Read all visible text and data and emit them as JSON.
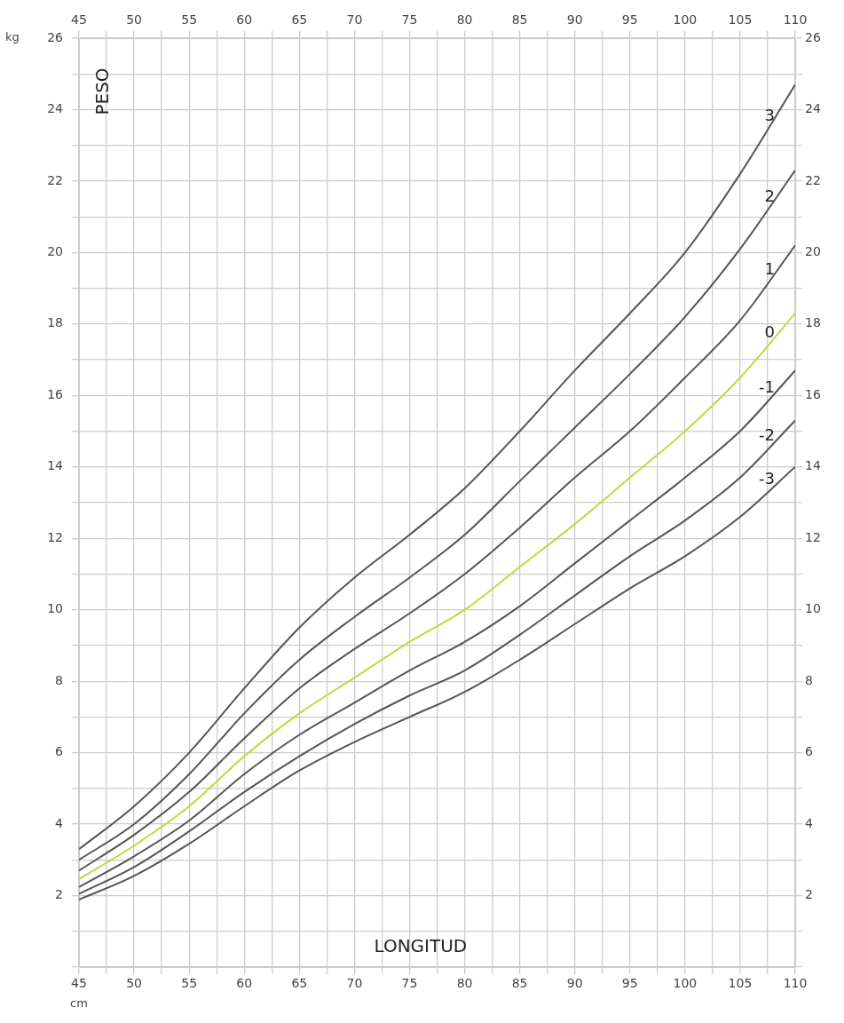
{
  "chart_data": {
    "type": "line",
    "xlabel": "LONGITUD",
    "ylabel": "PESO",
    "annotations": [
      "kg",
      "cm"
    ],
    "x": [
      45,
      50,
      55,
      60,
      65,
      70,
      75,
      80,
      85,
      90,
      95,
      100,
      105,
      110
    ],
    "series": [
      {
        "name": "3",
        "color": "#555555",
        "values": [
          3.3,
          4.5,
          6.0,
          7.8,
          9.5,
          10.9,
          12.1,
          13.4,
          15.0,
          16.7,
          18.3,
          20.0,
          22.2,
          24.7
        ]
      },
      {
        "name": "2",
        "color": "#555555",
        "values": [
          3.0,
          4.0,
          5.4,
          7.1,
          8.6,
          9.8,
          10.9,
          12.1,
          13.6,
          15.1,
          16.6,
          18.2,
          20.1,
          22.3
        ]
      },
      {
        "name": "1",
        "color": "#555555",
        "values": [
          2.7,
          3.7,
          4.9,
          6.4,
          7.8,
          8.9,
          9.9,
          11.0,
          12.3,
          13.7,
          15.0,
          16.5,
          18.1,
          20.2
        ]
      },
      {
        "name": "0",
        "color": "#c5d63f",
        "values": [
          2.46,
          3.4,
          4.5,
          5.9,
          7.1,
          8.1,
          9.1,
          10.0,
          11.2,
          12.4,
          13.7,
          15.0,
          16.5,
          18.3
        ]
      },
      {
        "name": "-1",
        "color": "#555555",
        "values": [
          2.24,
          3.1,
          4.1,
          5.4,
          6.5,
          7.4,
          8.3,
          9.1,
          10.1,
          11.3,
          12.5,
          13.7,
          15.0,
          16.7
        ]
      },
      {
        "name": "-2",
        "color": "#555555",
        "values": [
          2.05,
          2.8,
          3.8,
          4.9,
          5.9,
          6.8,
          7.6,
          8.3,
          9.3,
          10.4,
          11.5,
          12.5,
          13.7,
          15.3
        ]
      },
      {
        "name": "-3",
        "color": "#555555",
        "values": [
          1.89,
          2.55,
          3.45,
          4.5,
          5.5,
          6.3,
          7.0,
          7.7,
          8.6,
          9.6,
          10.6,
          11.5,
          12.6,
          14.0
        ]
      }
    ],
    "xlim": [
      45,
      110
    ],
    "xticks": [
      45,
      {
        "value": 47.5,
        "label": null
      },
      50,
      {
        "value": 52.5,
        "label": null
      },
      55,
      {
        "value": 57.5,
        "label": null
      },
      60,
      {
        "value": 62.5,
        "label": null
      },
      65,
      {
        "value": 67.5,
        "label": null
      },
      70,
      {
        "value": 72.5,
        "label": null
      },
      75,
      {
        "value": 77.5,
        "label": null
      },
      80,
      {
        "value": 82.5,
        "label": null
      },
      85,
      {
        "value": 87.5,
        "label": null
      },
      90,
      {
        "value": 92.5,
        "label": null
      },
      95,
      {
        "value": 97.5,
        "label": null
      },
      100,
      {
        "value": 102.5,
        "label": null
      },
      105,
      {
        "value": 107.5,
        "label": null
      },
      110
    ],
    "x2lim": [
      45,
      110
    ],
    "x2ticks": [
      45,
      {
        "value": 47.5,
        "label": null
      },
      50,
      {
        "value": 52.5,
        "label": null
      },
      55,
      {
        "value": 57.5,
        "label": null
      },
      60,
      {
        "value": 62.5,
        "label": null
      },
      65,
      {
        "value": 67.5,
        "label": null
      },
      70,
      {
        "value": 72.5,
        "label": null
      },
      75,
      {
        "value": 77.5,
        "label": null
      },
      80,
      {
        "value": 82.5,
        "label": null
      },
      85,
      {
        "value": 87.5,
        "label": null
      },
      90,
      {
        "value": 92.5,
        "label": null
      },
      95,
      {
        "value": 97.5,
        "label": null
      },
      100,
      {
        "value": 102.5,
        "label": null
      },
      105,
      {
        "value": 107.5,
        "label": null
      },
      110
    ],
    "ylim": [
      0,
      26
    ],
    "yticks": [
      {
        "value": 0,
        "label": null
      },
      {
        "value": 1,
        "label": null
      },
      2,
      {
        "value": 3,
        "label": null
      },
      4,
      {
        "value": 5,
        "label": null
      },
      6,
      {
        "value": 7,
        "label": null
      },
      8,
      {
        "value": 9,
        "label": null
      },
      10,
      {
        "value": 11,
        "label": null
      },
      12,
      {
        "value": 13,
        "label": null
      },
      14,
      {
        "value": 15,
        "label": null
      },
      16,
      {
        "value": 17,
        "label": null
      },
      18,
      {
        "value": 19,
        "label": null
      },
      20,
      {
        "value": 21,
        "label": null
      },
      22,
      {
        "value": 23,
        "label": null
      },
      24,
      {
        "value": 25,
        "label": null
      },
      26
    ],
    "y2lim": [
      0,
      26
    ],
    "y2ticks": [
      {
        "value": 0,
        "label": null
      },
      {
        "value": 1,
        "label": null
      },
      2,
      {
        "value": 3,
        "label": null
      },
      4,
      {
        "value": 5,
        "label": null
      },
      6,
      {
        "value": 7,
        "label": null
      },
      8,
      {
        "value": 9,
        "label": null
      },
      10,
      {
        "value": 11,
        "label": null
      },
      12,
      {
        "value": 13,
        "label": null
      },
      14,
      {
        "value": 15,
        "label": null
      },
      16,
      {
        "value": 17,
        "label": null
      },
      18,
      {
        "value": 19,
        "label": null
      },
      20,
      {
        "value": 21,
        "label": null
      },
      22,
      {
        "value": 23,
        "label": null
      },
      24,
      {
        "value": 25,
        "label": null
      },
      26
    ],
    "grid": true,
    "legend": false,
    "marker": "none",
    "line_style": "solid"
  }
}
